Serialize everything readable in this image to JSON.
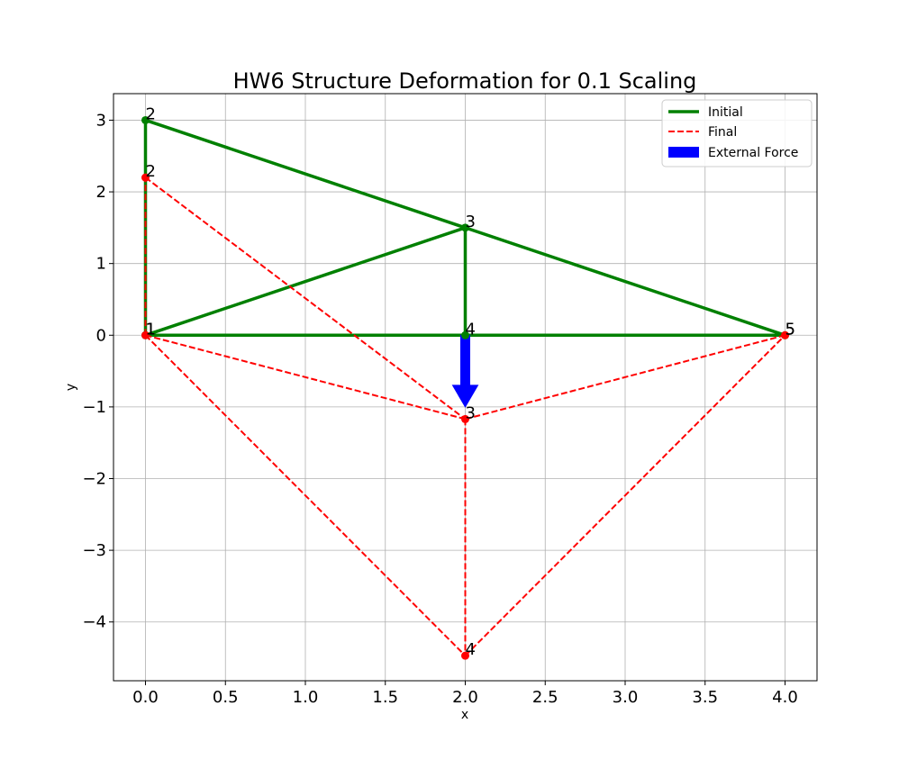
{
  "chart_data": {
    "type": "line",
    "title": "HW6 Structure Deformation for 0.1 Scaling",
    "xlabel": "x",
    "ylabel": "y",
    "xlim": [
      -0.2,
      4.2
    ],
    "ylim": [
      -4.82,
      3.37
    ],
    "xticks": [
      0.0,
      0.5,
      1.0,
      1.5,
      2.0,
      2.5,
      3.0,
      3.5,
      4.0
    ],
    "xtick_labels": [
      "0.0",
      "0.5",
      "1.0",
      "1.5",
      "2.0",
      "2.5",
      "3.0",
      "3.5",
      "4.0"
    ],
    "yticks": [
      3,
      2,
      1,
      0,
      -1,
      -2,
      -3,
      -4
    ],
    "ytick_labels": [
      "3",
      "2",
      "1",
      "0",
      "−1",
      "−2",
      "−3",
      "−4"
    ],
    "grid": true,
    "legend_position": "top-right",
    "legend": [
      {
        "label": "Initial",
        "style": "solid",
        "color": "#008000"
      },
      {
        "label": "Final",
        "style": "dashed",
        "color": "#ff0000"
      },
      {
        "label": "External Force",
        "style": "patch",
        "color": "#0000ff"
      }
    ],
    "series": [
      {
        "name": "Initial",
        "color": "#008000",
        "line_style": "solid",
        "nodes": [
          {
            "label": "1",
            "x": 0.0,
            "y": 0.0
          },
          {
            "label": "2",
            "x": 0.0,
            "y": 3.0
          },
          {
            "label": "3",
            "x": 2.0,
            "y": 1.5
          },
          {
            "label": "4",
            "x": 2.0,
            "y": 0.0
          },
          {
            "label": "5",
            "x": 4.0,
            "y": 0.0
          }
        ],
        "members": [
          [
            1,
            2
          ],
          [
            2,
            3
          ],
          [
            3,
            5
          ],
          [
            1,
            3
          ],
          [
            3,
            4
          ],
          [
            1,
            4
          ],
          [
            4,
            5
          ]
        ]
      },
      {
        "name": "Final",
        "color": "#ff0000",
        "line_style": "dashed",
        "nodes": [
          {
            "label": "1",
            "x": 0.0,
            "y": 0.0
          },
          {
            "label": "2",
            "x": 0.0,
            "y": 2.2
          },
          {
            "label": "3",
            "x": 2.0,
            "y": -1.17
          },
          {
            "label": "4",
            "x": 2.0,
            "y": -4.47
          },
          {
            "label": "5",
            "x": 4.0,
            "y": 0.0
          }
        ],
        "members": [
          [
            1,
            2
          ],
          [
            2,
            3
          ],
          [
            3,
            5
          ],
          [
            1,
            3
          ],
          [
            3,
            4
          ],
          [
            1,
            4
          ],
          [
            4,
            5
          ]
        ]
      }
    ],
    "external_force": {
      "x": 2.0,
      "y_start": 0.0,
      "y_end": -1.0,
      "color": "#0000ff"
    }
  }
}
